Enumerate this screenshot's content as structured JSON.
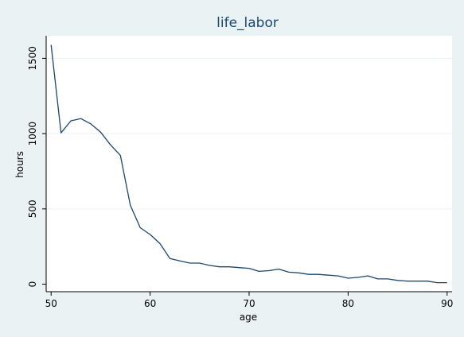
{
  "chart_data": {
    "type": "line",
    "title": "life_labor",
    "xlabel": "age",
    "ylabel": "hours",
    "xlim": [
      49.5,
      90.5
    ],
    "ylim": [
      -50,
      1650
    ],
    "x_ticks": [
      50,
      60,
      70,
      80,
      90
    ],
    "y_ticks": [
      0,
      500,
      1000,
      1500
    ],
    "grid": "horizontal",
    "legend": "none",
    "colors": {
      "background": "#eaf2f3",
      "plot_area": "#ffffff",
      "line": "#1a476f",
      "title": "#1a476f",
      "gridline": "#eaf2f3"
    },
    "series": [
      {
        "x": [
          50,
          51,
          52,
          53,
          54,
          55,
          56,
          57,
          58,
          59,
          60,
          61,
          62,
          63,
          64,
          65,
          66,
          67,
          68,
          69,
          70,
          71,
          72,
          73,
          74,
          75,
          76,
          77,
          78,
          79,
          80,
          81,
          82,
          83,
          84,
          85,
          86,
          87,
          88,
          89,
          90
        ],
        "values": [
          1590,
          1005,
          1085,
          1100,
          1065,
          1010,
          925,
          855,
          525,
          375,
          330,
          270,
          170,
          155,
          140,
          140,
          125,
          115,
          115,
          110,
          105,
          85,
          90,
          100,
          80,
          75,
          65,
          65,
          60,
          55,
          40,
          45,
          55,
          35,
          35,
          25,
          20,
          20,
          20,
          10,
          10
        ]
      }
    ]
  }
}
